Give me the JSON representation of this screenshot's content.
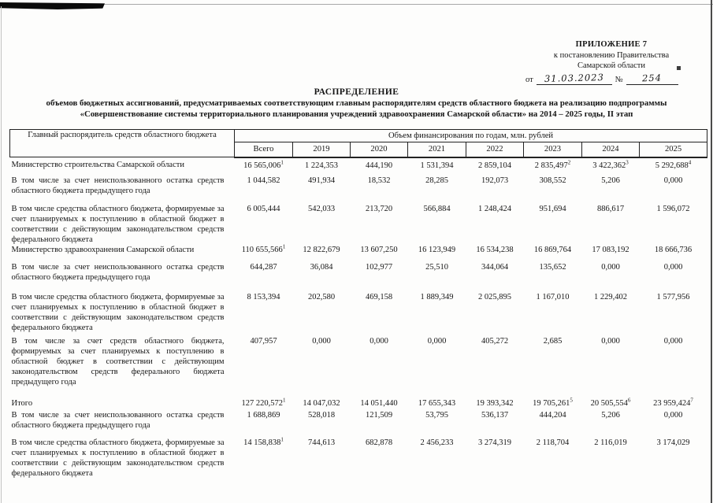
{
  "appendix": {
    "line1": "ПРИЛОЖЕНИЕ 7",
    "line2": "к постановлению Правительства",
    "line3": "Самарской области",
    "from_label": "от",
    "date_handwritten": "31.03.2023",
    "no_label": "№",
    "number_handwritten": "254"
  },
  "title": {
    "heading": "РАСПРЕДЕЛЕНИЕ",
    "subtitle_line1": "объемов бюджетных ассигнований, предусматриваемых соответствующим главным распорядителям средств областного бюджета на реализацию подпрограммы",
    "subtitle_line2": "«Совершенствование системы территориального планирования учреждений здравоохранения Самарской области» на 2014 – 2025 годы, II этап"
  },
  "table": {
    "col1_header": "Главный распорядитель средств областного бюджета",
    "span_header": "Объем финансирования по годам, млн. рублей",
    "year_headers": [
      "Всего",
      "2019",
      "2020",
      "2021",
      "2022",
      "2023",
      "2024",
      "2025"
    ],
    "rows": [
      {
        "label": "Министерство строительства Самарской области",
        "values": [
          "16 565,006",
          "1 224,353",
          "444,190",
          "1 531,394",
          "2 859,104",
          "2 835,497",
          "3 422,362",
          "5 292,688"
        ],
        "sups": [
          "1",
          "",
          "",
          "",
          "",
          "2",
          "3",
          "4"
        ]
      },
      {
        "label": "В том числе за счет неиспользованного остатка средств областного бюджета предыдущего года",
        "values": [
          "1 044,582",
          "491,934",
          "18,532",
          "28,285",
          "192,073",
          "308,552",
          "5,206",
          "0,000"
        ],
        "sups": [
          "",
          "",
          "",
          "",
          "",
          "",
          "",
          ""
        ]
      },
      {
        "label": "В том числе средства областного бюджета, формируемые за счет планируемых к поступлению в областной бюджет в соответствии с действующим законодательством средств федерального бюджета",
        "values": [
          "6 005,444",
          "542,033",
          "213,720",
          "566,884",
          "1 248,424",
          "951,694",
          "886,617",
          "1 596,072"
        ],
        "sups": [
          "",
          "",
          "",
          "",
          "",
          "",
          "",
          ""
        ]
      },
      {
        "label": "Министерство здравоохранения Самарской области",
        "values": [
          "110 655,566",
          "12 822,679",
          "13 607,250",
          "16 123,949",
          "16 534,238",
          "16 869,764",
          "17 083,192",
          "18 666,736"
        ],
        "sups": [
          "1",
          "",
          "",
          "",
          "",
          "",
          "",
          ""
        ]
      },
      {
        "label": "В том числе за счет неиспользованного остатка средств областного бюджета предыдущего года",
        "values": [
          "644,287",
          "36,084",
          "102,977",
          "25,510",
          "344,064",
          "135,652",
          "0,000",
          "0,000"
        ],
        "sups": [
          "",
          "",
          "",
          "",
          "",
          "",
          "",
          ""
        ]
      },
      {
        "label": "В том числе средства областного бюджета, формируемые за счет планируемых к поступлению в областной бюджет в соответствии с действующим законодательством средств федерального бюджета",
        "values": [
          "8 153,394",
          "202,580",
          "469,158",
          "1 889,349",
          "2 025,895",
          "1 167,010",
          "1 229,402",
          "1 577,956"
        ],
        "sups": [
          "",
          "",
          "",
          "",
          "",
          "",
          "",
          ""
        ]
      },
      {
        "label": "В том числе за счет средств областного бюджета, формируемых за счет планируемых к поступлению в областной бюджет в соответствии с действующим законодательством средств федерального бюджета предыдущего года",
        "values": [
          "407,957",
          "0,000",
          "0,000",
          "0,000",
          "405,272",
          "2,685",
          "0,000",
          "0,000"
        ],
        "sups": [
          "",
          "",
          "",
          "",
          "",
          "",
          "",
          ""
        ]
      },
      {
        "label": "Итого",
        "values": [
          "127 220,572",
          "14 047,032",
          "14 051,440",
          "17 655,343",
          "19 393,342",
          "19 705,261",
          "20 505,554",
          "23 959,424"
        ],
        "sups": [
          "1",
          "",
          "",
          "",
          "",
          "5",
          "6",
          "7"
        ]
      },
      {
        "label": "В том числе за счет неиспользованного остатка средств областного бюджета предыдущего года",
        "values": [
          "1 688,869",
          "528,018",
          "121,509",
          "53,795",
          "536,137",
          "444,204",
          "5,206",
          "0,000"
        ],
        "sups": [
          "",
          "",
          "",
          "",
          "",
          "",
          "",
          ""
        ]
      },
      {
        "label": "В том числе средства областного бюджета, формируемые за счет планируемых к поступлению в областной бюджет в соответствии с действующим законодательством средств федерального бюджета",
        "values": [
          "14 158,838",
          "744,613",
          "682,878",
          "2 456,233",
          "3 274,319",
          "2 118,704",
          "2 116,019",
          "3 174,029"
        ],
        "sups": [
          "1",
          "",
          "",
          "",
          "",
          "",
          "",
          ""
        ]
      }
    ]
  }
}
